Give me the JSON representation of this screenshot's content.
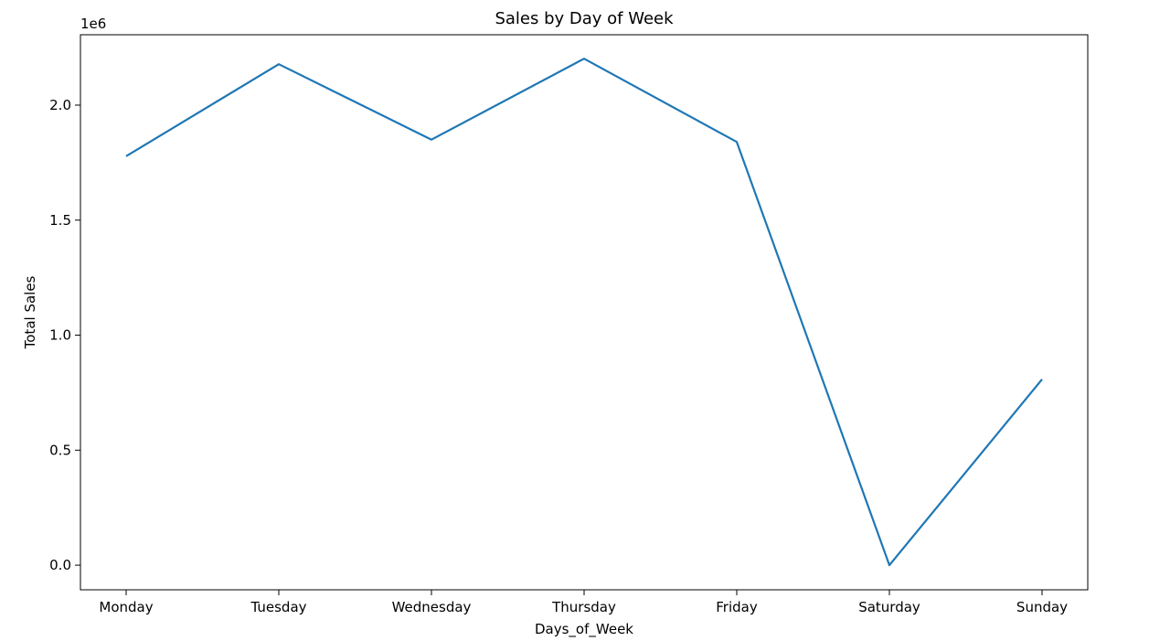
{
  "chart_data": {
    "type": "line",
    "title": "Sales by Day of Week",
    "xlabel": "Days_of_Week",
    "ylabel": "Total Sales",
    "y_offset_label": "1e6",
    "categories": [
      "Monday",
      "Tuesday",
      "Wednesday",
      "Thursday",
      "Friday",
      "Saturday",
      "Sunday"
    ],
    "series": [
      {
        "values": [
          1778000,
          2178000,
          1850000,
          2202000,
          1840000,
          0,
          808000
        ],
        "color": "#1f77b4"
      }
    ],
    "ylim": [
      -107000,
      2306000
    ],
    "yticks": [
      0,
      500000,
      1000000,
      1500000,
      2000000
    ],
    "ytick_labels": [
      "0.0",
      "0.5",
      "1.0",
      "1.5",
      "2.0"
    ],
    "grid": false,
    "legend": "none"
  }
}
